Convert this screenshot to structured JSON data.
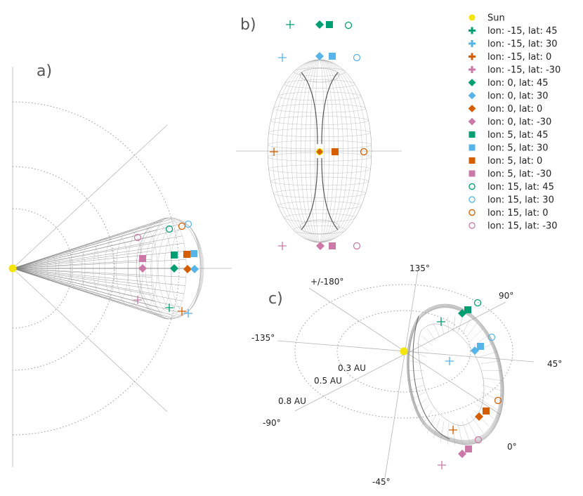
{
  "panels": {
    "a": "a)",
    "b": "b)",
    "c": "c)"
  },
  "angle_labels": {
    "deg_135": "135°",
    "deg_180": "+/-180°",
    "deg_90": "90°",
    "deg_m135": "-135°",
    "deg_45": "45°",
    "deg_m90": "-90°",
    "deg_0": "0°",
    "deg_m45": "-45°"
  },
  "distance_labels": {
    "d03": "0.3 AU",
    "d05": "0.5 AU",
    "d08": "0.8 AU"
  },
  "colors": {
    "sun": "#f5e50a",
    "green": "#009e73",
    "blue": "#56b4e9",
    "orange": "#d55e00",
    "pink": "#cc79a7"
  },
  "legend": [
    {
      "label": "Sun",
      "marker": "circle-filled",
      "color": "#f5e50a"
    },
    {
      "label": "lon: -15, lat: 45",
      "marker": "plus-bold",
      "color": "#009e73"
    },
    {
      "label": "lon: -15, lat: 30",
      "marker": "plus-bold",
      "color": "#56b4e9"
    },
    {
      "label": "lon: -15, lat: 0",
      "marker": "plus-bold",
      "color": "#d55e00"
    },
    {
      "label": "lon: -15, lat: -30",
      "marker": "plus-bold",
      "color": "#cc79a7"
    },
    {
      "label": "lon: 0, lat: 45",
      "marker": "diamond",
      "color": "#009e73"
    },
    {
      "label": "lon: 0, lat: 30",
      "marker": "diamond",
      "color": "#56b4e9"
    },
    {
      "label": "lon: 0, lat: 0",
      "marker": "diamond",
      "color": "#d55e00"
    },
    {
      "label": "lon: 0, lat: -30",
      "marker": "diamond",
      "color": "#cc79a7"
    },
    {
      "label": "lon: 5, lat: 45",
      "marker": "square",
      "color": "#009e73"
    },
    {
      "label": "lon: 5, lat: 30",
      "marker": "square",
      "color": "#56b4e9"
    },
    {
      "label": "lon: 5, lat: 0",
      "marker": "square",
      "color": "#d55e00"
    },
    {
      "label": "lon: 5, lat: -30",
      "marker": "square",
      "color": "#cc79a7"
    },
    {
      "label": "lon: 15, lat: 45",
      "marker": "circle-open",
      "color": "#009e73"
    },
    {
      "label": "lon: 15, lat: 30",
      "marker": "circle-open",
      "color": "#56b4e9"
    },
    {
      "label": "lon: 15, lat: 0",
      "marker": "circle-open",
      "color": "#d55e00"
    },
    {
      "label": "lon: 15, lat: -30",
      "marker": "circle-open",
      "color": "#cc79a7"
    }
  ]
}
